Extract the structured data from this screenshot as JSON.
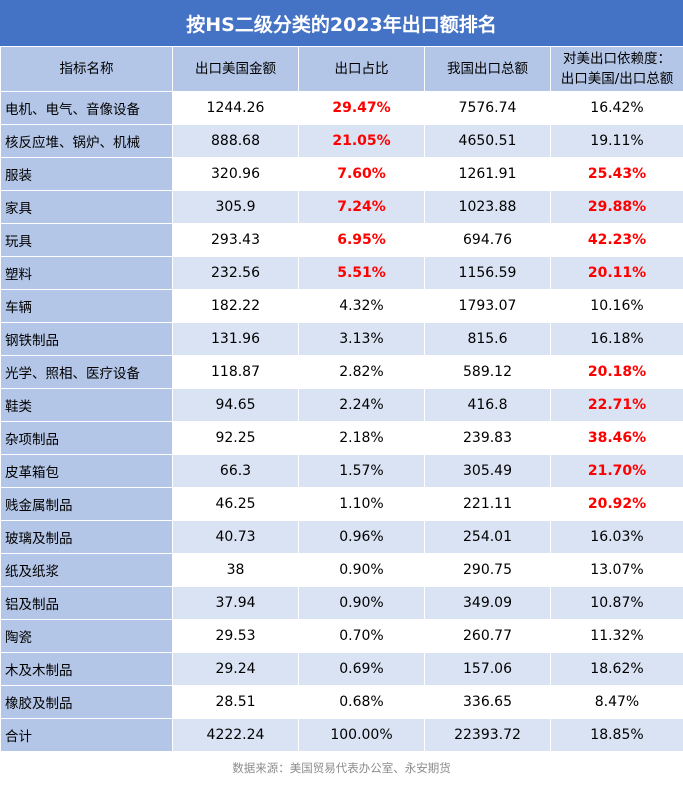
{
  "title": "按HS二级分类的2023年出口额排名",
  "headers": [
    "指标名称",
    "出口美国金额",
    "出口占比",
    "我国出口总额",
    "对美出口依赖度：出口美国/出口总额"
  ],
  "highlight_color": "#ff0000",
  "header_bg": "#4472c4",
  "source": "数据来源：美国贸易代表办公室、永安期货",
  "chart_data": {
    "type": "table",
    "title": "按HS二级分类的2023年出口额排名",
    "columns": [
      "指标名称",
      "出口美国金额",
      "出口占比",
      "我国出口总额",
      "对美出口依赖度：出口美国/出口总额"
    ],
    "rows": [
      [
        "电机、电气、音像设备",
        "1244.26",
        "29.47%",
        "7576.74",
        "16.42%"
      ],
      [
        "核反应堆、锅炉、机械",
        "888.68",
        "21.05%",
        "4650.51",
        "19.11%"
      ],
      [
        "服装",
        "320.96",
        "7.60%",
        "1261.91",
        "25.43%"
      ],
      [
        "家具",
        "305.9",
        "7.24%",
        "1023.88",
        "29.88%"
      ],
      [
        "玩具",
        "293.43",
        "6.95%",
        "694.76",
        "42.23%"
      ],
      [
        "塑料",
        "232.56",
        "5.51%",
        "1156.59",
        "20.11%"
      ],
      [
        "车辆",
        "182.22",
        "4.32%",
        "1793.07",
        "10.16%"
      ],
      [
        "钢铁制品",
        "131.96",
        "3.13%",
        "815.6",
        "16.18%"
      ],
      [
        "光学、照相、医疗设备",
        "118.87",
        "2.82%",
        "589.12",
        "20.18%"
      ],
      [
        "鞋类",
        "94.65",
        "2.24%",
        "416.8",
        "22.71%"
      ],
      [
        "杂项制品",
        "92.25",
        "2.18%",
        "239.83",
        "38.46%"
      ],
      [
        "皮革箱包",
        "66.3",
        "1.57%",
        "305.49",
        "21.70%"
      ],
      [
        "贱金属制品",
        "46.25",
        "1.10%",
        "221.11",
        "20.92%"
      ],
      [
        "玻璃及制品",
        "40.73",
        "0.96%",
        "254.01",
        "16.03%"
      ],
      [
        "纸及纸浆",
        "38",
        "0.90%",
        "290.75",
        "13.07%"
      ],
      [
        "铝及制品",
        "37.94",
        "0.90%",
        "349.09",
        "10.87%"
      ],
      [
        "陶瓷",
        "29.53",
        "0.70%",
        "260.77",
        "11.32%"
      ],
      [
        "木及木制品",
        "29.24",
        "0.69%",
        "157.06",
        "18.62%"
      ],
      [
        "橡胶及制品",
        "28.51",
        "0.68%",
        "336.65",
        "8.47%"
      ],
      [
        "合计",
        "4222.24",
        "100.00%",
        "22393.72",
        "18.85%"
      ]
    ],
    "highlighted_cells": {
      "col_2_rows": [
        0,
        1,
        2,
        3,
        4,
        5
      ],
      "col_4_rows": [
        2,
        3,
        4,
        5,
        8,
        9,
        10,
        11,
        12
      ]
    }
  }
}
